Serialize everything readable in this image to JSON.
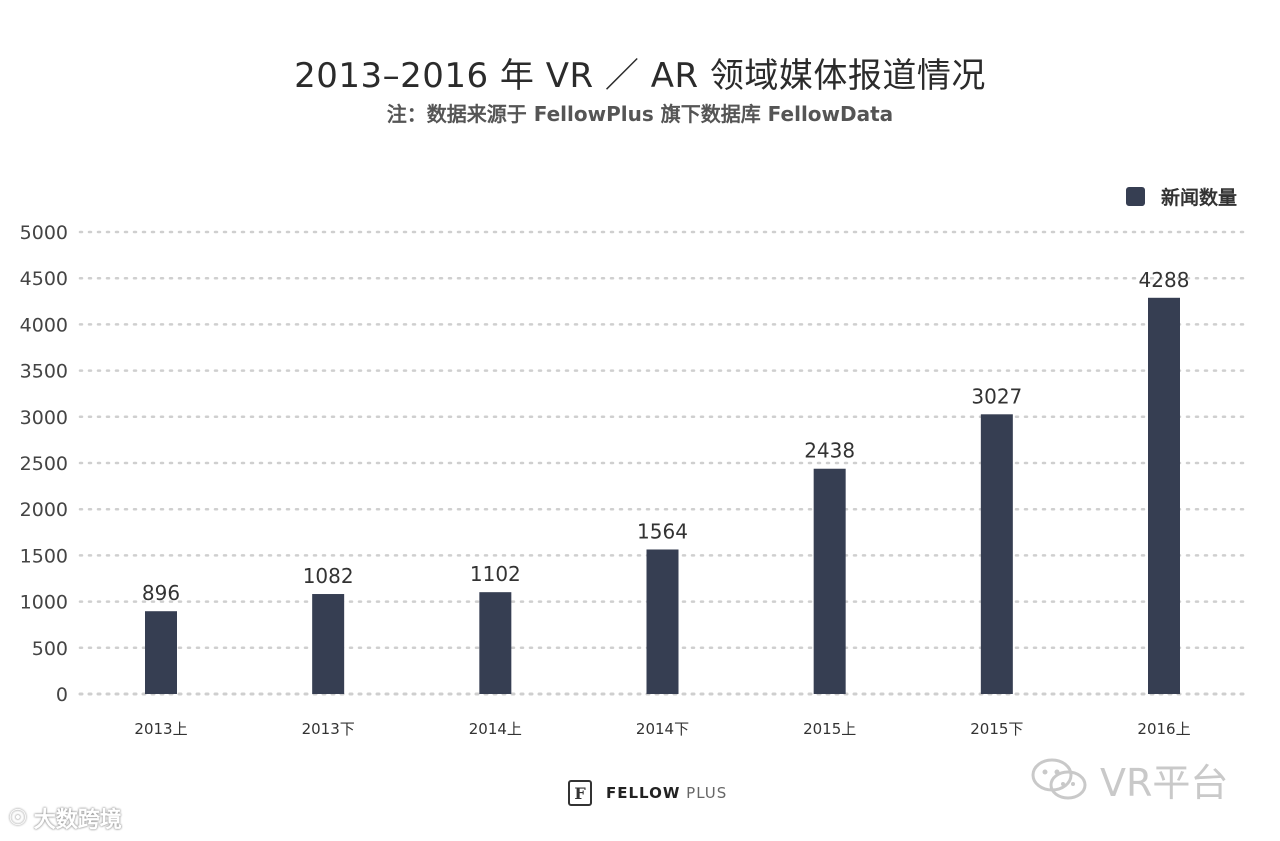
{
  "header": {
    "title": "2013–2016 年 VR ／ AR 领域媒体报道情况",
    "subtitle": "注：数据来源于 FellowPlus 旗下数据库 FellowData"
  },
  "colors": {
    "bar": "#363e52",
    "grid": "#cfcfcf",
    "axis_text": "#444444"
  },
  "chart_data": {
    "type": "bar",
    "title": "2013–2016 年 VR ／ AR 领域媒体报道情况",
    "xlabel": "",
    "ylabel": "",
    "categories": [
      "2013上",
      "2013下",
      "2014上",
      "2014下",
      "2015上",
      "2015下",
      "2016上"
    ],
    "series": [
      {
        "name": "新闻数量",
        "values": [
          896,
          1082,
          1102,
          1564,
          2438,
          3027,
          4288
        ]
      }
    ],
    "ylim": [
      0,
      5000
    ],
    "yticks": [
      0,
      500,
      1000,
      1500,
      2000,
      2500,
      3000,
      3500,
      4000,
      4500,
      5000
    ],
    "grid": true,
    "legend_position": "top-right"
  },
  "legend": {
    "label": "新闻数量"
  },
  "footer": {
    "brand_bold": "FELLOW",
    "brand_light": " PLUS",
    "mark": "F"
  },
  "watermarks": {
    "right": "VR平台",
    "left": "大数跨境"
  }
}
